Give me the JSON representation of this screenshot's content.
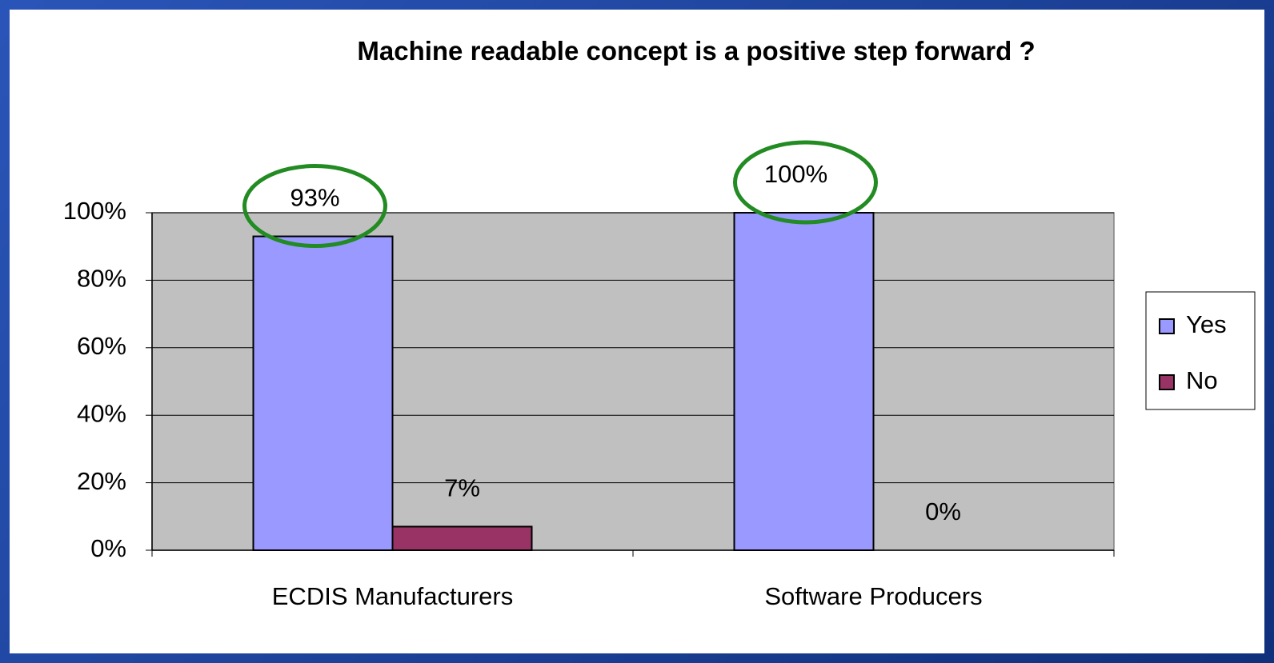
{
  "chart_data": {
    "type": "bar",
    "title": "Machine readable concept is a positive step forward ?",
    "categories": [
      "ECDIS Manufacturers",
      "Software Producers"
    ],
    "series": [
      {
        "name": "Yes",
        "color": "#9999ff",
        "values": [
          93,
          100
        ],
        "value_labels": [
          "93%",
          "100%"
        ]
      },
      {
        "name": "No",
        "color": "#993366",
        "values": [
          7,
          0
        ],
        "value_labels": [
          "7%",
          "0%"
        ]
      }
    ],
    "ylim": [
      0,
      100
    ],
    "yticks": [
      {
        "value": 0,
        "label": "0%"
      },
      {
        "value": 20,
        "label": "20%"
      },
      {
        "value": 40,
        "label": "40%"
      },
      {
        "value": 60,
        "label": "60%"
      },
      {
        "value": 80,
        "label": "80%"
      },
      {
        "value": 100,
        "label": "100%"
      }
    ],
    "grid": true,
    "legend": "right",
    "plot_background": "#c0c0c0"
  }
}
